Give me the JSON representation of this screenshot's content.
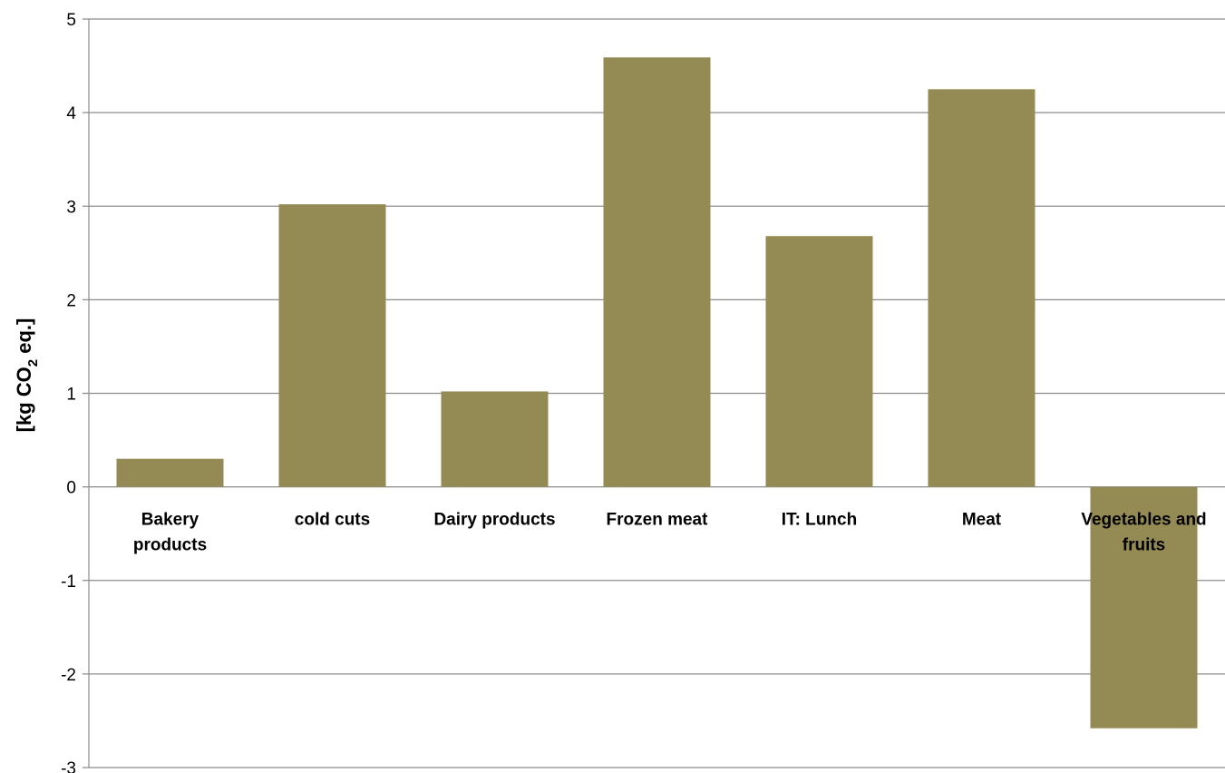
{
  "chart_data": {
    "type": "bar",
    "title": "",
    "xlabel": "",
    "ylabel": {
      "prefix": "[kg CO",
      "subscript": "2",
      "suffix": " eq.]"
    },
    "ylim": [
      -3,
      5
    ],
    "yticks": [
      5,
      4,
      3,
      2,
      1,
      0,
      -1,
      -2,
      -3
    ],
    "grid": true,
    "legend": "none",
    "bar_color": "#948A54",
    "categories": [
      [
        "Bakery",
        "products"
      ],
      [
        "cold cuts"
      ],
      [
        "Dairy products"
      ],
      [
        "Frozen meat"
      ],
      [
        "IT: Lunch"
      ],
      [
        "Meat"
      ],
      [
        "Vegetables and",
        "fruits"
      ]
    ],
    "values": [
      0.3,
      3.02,
      1.02,
      4.59,
      2.68,
      4.25,
      -2.58
    ]
  }
}
